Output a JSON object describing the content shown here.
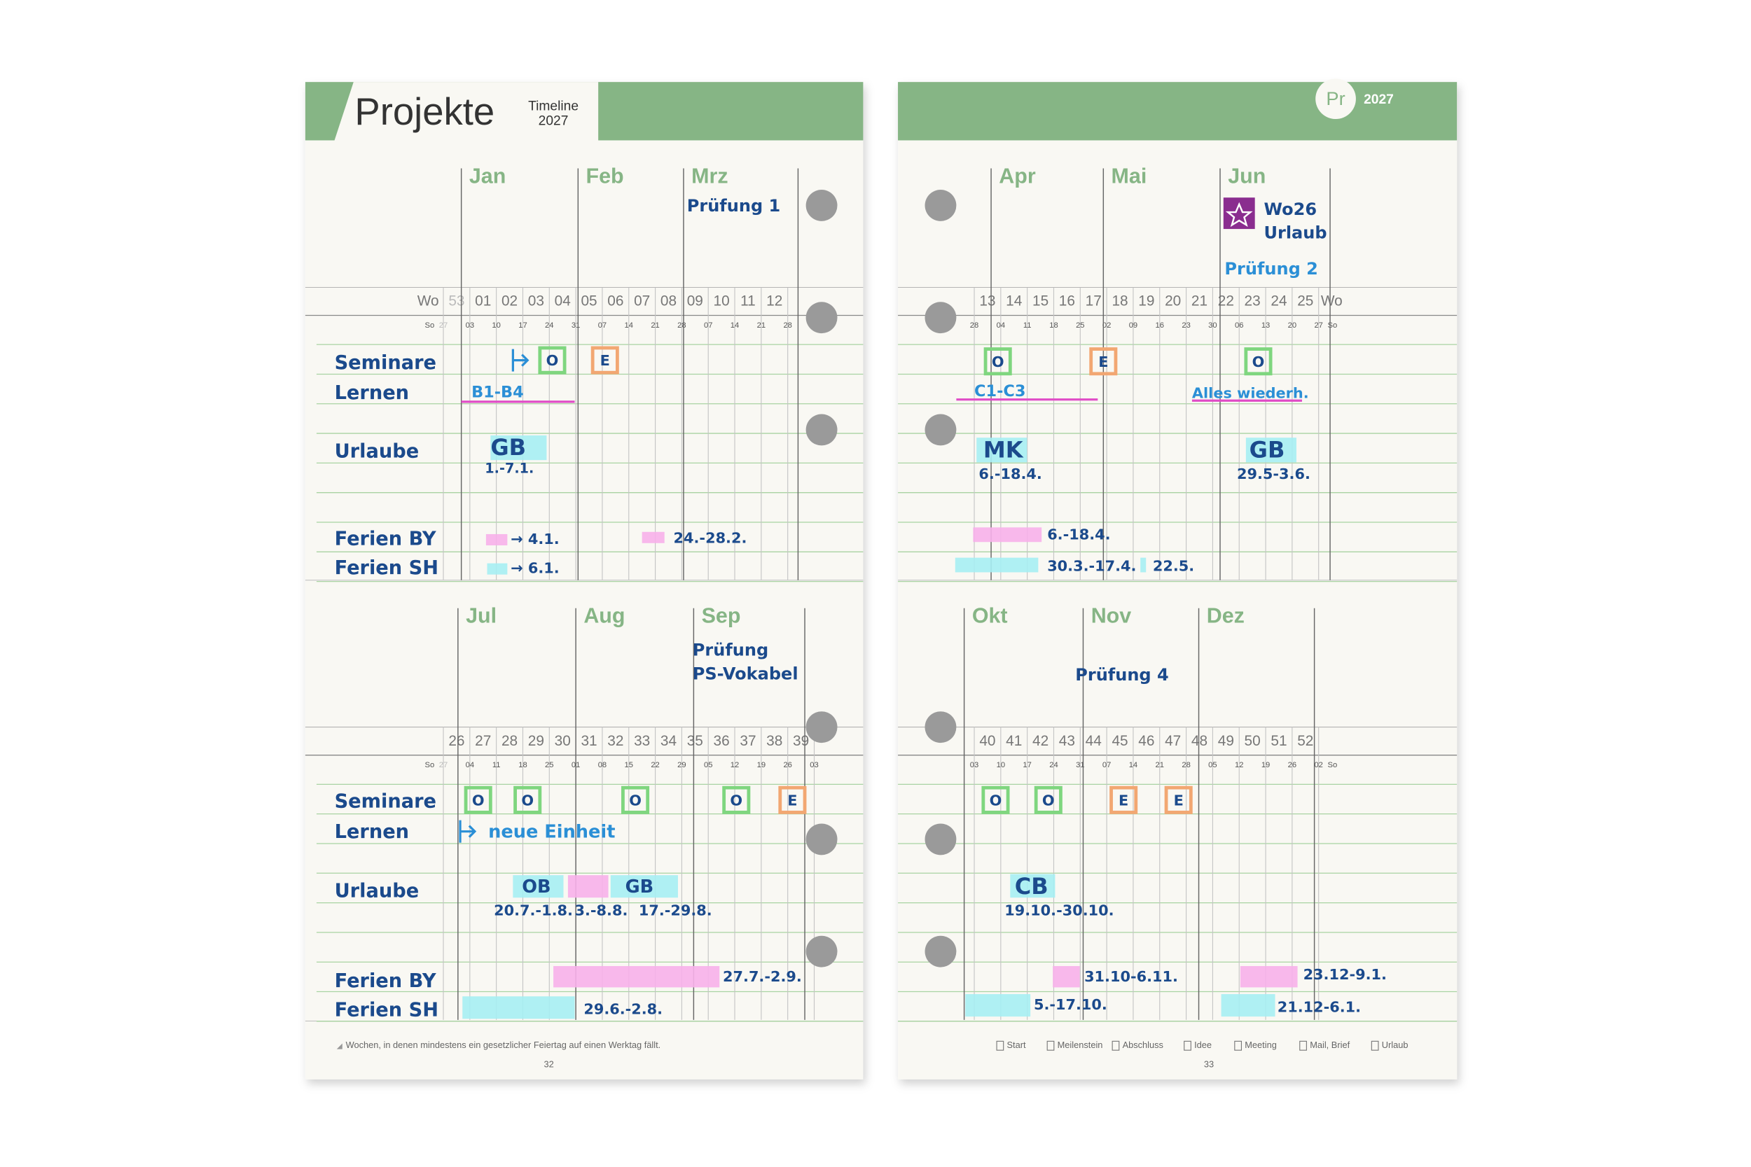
{
  "pages": [
    {
      "title": "Projekte",
      "subtitle": "Timeline",
      "year": "2027",
      "footnote": "Wochen, in denen mindestens ein gesetzlicher Feiertag auf einen Werktag fällt.",
      "page_number": "32",
      "quarters": [
        {
          "months": [
            "Jan",
            "Feb",
            "Mrz"
          ],
          "week_label": "Wo",
          "day_label": "So",
          "weeks": [
            "53",
            "01",
            "02",
            "03",
            "04",
            "05",
            "06",
            "07",
            "08",
            "09",
            "10",
            "11",
            "12"
          ],
          "dates": [
            "27",
            "03",
            "10",
            "17",
            "24",
            "31",
            "07",
            "14",
            "21",
            "28",
            "07",
            "14",
            "21",
            "28"
          ],
          "row_labels": [
            "Seminare",
            "Lernen",
            "Urlaube",
            "Ferien BY",
            "Ferien SH"
          ],
          "milestones": [
            "O",
            "E"
          ],
          "notes": [
            "Prüfung 1",
            "B1-B4",
            "GB",
            "1.-7.1.",
            "→ 4.1.",
            "24.-28.2.",
            "→ 6.1."
          ]
        },
        {
          "months": [
            "Jul",
            "Aug",
            "Sep"
          ],
          "day_label": "So",
          "weeks": [
            "26",
            "27",
            "28",
            "29",
            "30",
            "31",
            "32",
            "33",
            "34",
            "35",
            "36",
            "37",
            "38",
            "39"
          ],
          "dates": [
            "27",
            "04",
            "11",
            "18",
            "25",
            "01",
            "08",
            "15",
            "22",
            "29",
            "05",
            "12",
            "19",
            "26",
            "03"
          ],
          "row_labels": [
            "Seminare",
            "Lernen",
            "Urlaube",
            "Ferien BY",
            "Ferien SH"
          ],
          "milestones": [
            "O",
            "O",
            "O",
            "O",
            "E"
          ],
          "notes": [
            "Prüfung",
            "PS-Vokabel",
            "neue Einheit",
            "OB",
            "GB",
            "20.7.-1.8.",
            "3.-8.8.",
            "17.-29.8.",
            "27.7.-2.9.",
            "29.6.-2.8."
          ]
        }
      ]
    },
    {
      "tab": "Pr",
      "year": "2027",
      "page_number": "33",
      "legend": [
        "Start",
        "Meilenstein",
        "Abschluss",
        "Idee",
        "Meeting",
        "Mail, Brief",
        "Urlaub"
      ],
      "quarters": [
        {
          "months": [
            "Apr",
            "Mai",
            "Jun"
          ],
          "week_label": "Wo",
          "day_label": "So",
          "weeks": [
            "13",
            "14",
            "15",
            "16",
            "17",
            "18",
            "19",
            "20",
            "21",
            "22",
            "23",
            "24",
            "25"
          ],
          "dates": [
            "28",
            "04",
            "11",
            "18",
            "25",
            "02",
            "09",
            "16",
            "23",
            "30",
            "06",
            "13",
            "20",
            "27"
          ],
          "milestones": [
            "O",
            "E",
            "O"
          ],
          "notes": [
            "Wo26",
            "Urlaub",
            "Prüfung 2",
            "C1-C3",
            "Alles wiederh.",
            "MK",
            "6.-18.4.",
            "GB",
            "29.5-3.6.",
            "6.-18.4.",
            "30.3.-17.4.",
            "22.5."
          ]
        },
        {
          "months": [
            "Okt",
            "Nov",
            "Dez"
          ],
          "day_label": "So",
          "weeks": [
            "40",
            "41",
            "42",
            "43",
            "44",
            "45",
            "46",
            "47",
            "48",
            "49",
            "50",
            "51",
            "52"
          ],
          "dates": [
            "03",
            "10",
            "17",
            "24",
            "31",
            "07",
            "14",
            "21",
            "28",
            "05",
            "12",
            "19",
            "26",
            "02"
          ],
          "milestones": [
            "O",
            "O",
            "E",
            "E"
          ],
          "notes": [
            "Prüfung 4",
            "CB",
            "19.10.-30.10.",
            "31.10-6.11.",
            "23.12-9.1.",
            "5.-17.10.",
            "21.12-6.1."
          ]
        }
      ]
    }
  ]
}
